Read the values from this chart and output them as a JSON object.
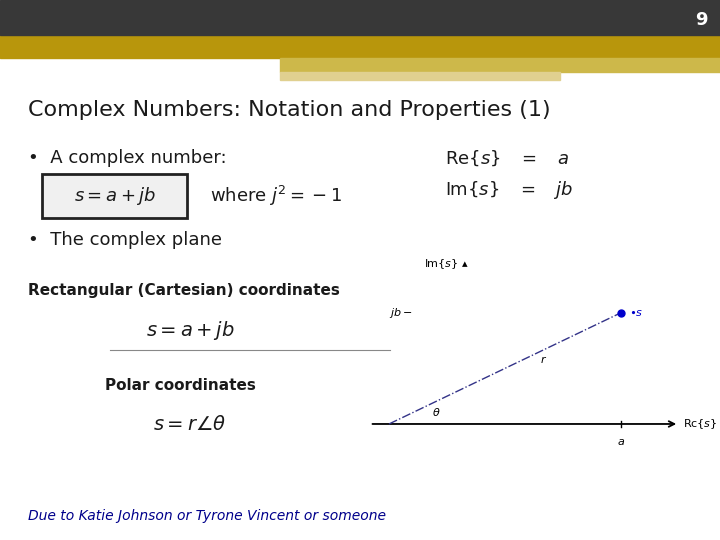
{
  "title": "Complex Numbers: Notation and Properties (1)",
  "slide_number": "9",
  "background_color": "#ffffff",
  "header_dark_color": "#383838",
  "header_gold_color": "#b8960c",
  "bullet1": "A complex number:",
  "bullet2": "The complex plane",
  "where_text": "where $j^2 = -1$",
  "coords_label": "Rectangular (Cartesian) coordinates",
  "polar_label": "Polar coordinates",
  "footer_text": "Due to Katie Johnson or Tyrone Vincent or someone",
  "footer_color": "#00008b"
}
